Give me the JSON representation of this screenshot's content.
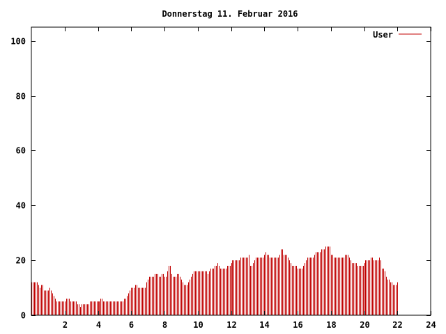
{
  "colors": {
    "series": "#c00000",
    "axis": "#000000",
    "background": "#ffffff"
  },
  "chart_data": {
    "type": "bar",
    "title": "Donnerstag 11. Februar 2016",
    "xlabel": "",
    "ylabel": "",
    "xlim": [
      0,
      24
    ],
    "ylim": [
      0,
      105
    ],
    "grid": false,
    "legend_position": "top-right",
    "x_ticks": [
      "2",
      "4",
      "6",
      "8",
      "10",
      "12",
      "14",
      "16",
      "18",
      "20",
      "22",
      "24"
    ],
    "y_ticks": [
      "0",
      "20",
      "40",
      "60",
      "80",
      "100"
    ],
    "series": [
      {
        "name": "User",
        "interval_minutes": 5,
        "values": [
          12,
          12,
          12,
          12,
          12,
          11,
          10,
          11,
          11,
          9,
          9,
          9,
          9,
          10,
          9,
          8,
          7,
          6,
          5,
          5,
          5,
          5,
          5,
          5,
          5,
          6,
          6,
          6,
          5,
          5,
          5,
          5,
          5,
          4,
          4,
          3,
          4,
          4,
          4,
          4,
          4,
          4,
          5,
          5,
          5,
          5,
          5,
          5,
          5,
          5,
          6,
          6,
          5,
          5,
          5,
          5,
          5,
          5,
          5,
          5,
          5,
          5,
          5,
          5,
          5,
          5,
          5,
          6,
          6,
          7,
          8,
          9,
          10,
          10,
          10,
          11,
          11,
          10,
          10,
          10,
          10,
          10,
          10,
          12,
          13,
          14,
          14,
          14,
          14,
          15,
          15,
          15,
          14,
          14,
          15,
          15,
          14,
          14,
          16,
          18,
          18,
          15,
          14,
          14,
          14,
          15,
          15,
          14,
          13,
          12,
          11,
          11,
          11,
          12,
          13,
          14,
          15,
          16,
          16,
          16,
          16,
          16,
          16,
          16,
          16,
          16,
          16,
          15,
          16,
          17,
          17,
          17,
          18,
          18,
          19,
          18,
          17,
          17,
          17,
          17,
          17,
          18,
          18,
          18,
          19,
          20,
          20,
          20,
          20,
          20,
          20,
          21,
          21,
          21,
          21,
          21,
          21,
          22,
          18,
          18,
          19,
          20,
          21,
          21,
          21,
          21,
          21,
          21,
          22,
          23,
          22,
          22,
          21,
          21,
          21,
          21,
          21,
          21,
          21,
          22,
          24,
          24,
          22,
          22,
          22,
          21,
          20,
          19,
          18,
          18,
          18,
          18,
          17,
          17,
          17,
          17,
          18,
          19,
          20,
          21,
          21,
          21,
          21,
          21,
          22,
          23,
          23,
          23,
          23,
          24,
          24,
          24,
          25,
          25,
          25,
          25,
          22,
          22,
          21,
          21,
          21,
          21,
          21,
          21,
          21,
          21,
          22,
          22,
          22,
          21,
          20,
          19,
          19,
          19,
          19,
          18,
          18,
          18,
          18,
          18,
          19,
          20,
          20,
          20,
          20,
          21,
          21,
          20,
          20,
          20,
          20,
          21,
          20,
          17,
          17,
          16,
          14,
          13,
          13,
          12,
          12,
          11,
          11,
          11,
          12
        ]
      }
    ]
  }
}
